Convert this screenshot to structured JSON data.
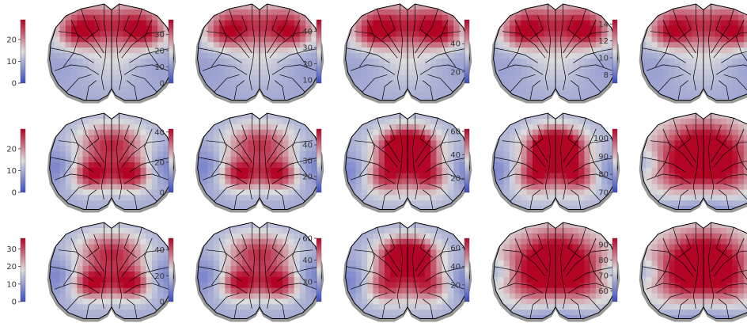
{
  "chart_data": {
    "type": "heatmap",
    "layout": {
      "rows": 3,
      "cols": 5
    },
    "colormap": {
      "name": "coolwarm",
      "low": "#3b4cc0",
      "mid": "#dddddd",
      "high": "#b40426"
    },
    "outline_color": "#000000",
    "background_region_color": "#999999",
    "panels": [
      {
        "row": 0,
        "col": 0,
        "pattern": "frontal",
        "peak": 0.95,
        "range": [
          0,
          29
        ],
        "ticks": [
          0,
          10,
          20
        ]
      },
      {
        "row": 0,
        "col": 1,
        "pattern": "frontal",
        "peak": 0.92,
        "range": [
          0,
          39
        ],
        "ticks": [
          0,
          10,
          20,
          30
        ]
      },
      {
        "row": 0,
        "col": 2,
        "pattern": "frontal",
        "peak": 0.97,
        "range": [
          8,
          47
        ],
        "ticks": [
          10,
          20,
          30,
          40
        ]
      },
      {
        "row": 0,
        "col": 3,
        "pattern": "frontal",
        "peak": 0.95,
        "range": [
          12,
          57
        ],
        "ticks": [
          20,
          40
        ]
      },
      {
        "row": 0,
        "col": 4,
        "pattern": "frontal",
        "peak": 0.93,
        "range": [
          7,
          14.5
        ],
        "ticks": [
          8,
          10,
          12,
          14
        ]
      },
      {
        "row": 1,
        "col": 0,
        "pattern": "lateral",
        "peak": 0.95,
        "range": [
          0,
          29
        ],
        "ticks": [
          0,
          10,
          20
        ]
      },
      {
        "row": 1,
        "col": 1,
        "pattern": "lateral",
        "peak": 0.92,
        "range": [
          0,
          42
        ],
        "ticks": [
          0,
          20,
          40
        ]
      },
      {
        "row": 1,
        "col": 2,
        "pattern": "lateral_front",
        "peak": 0.95,
        "range": [
          10,
          50
        ],
        "ticks": [
          20,
          30,
          40
        ]
      },
      {
        "row": 1,
        "col": 3,
        "pattern": "lateral_front",
        "peak": 0.96,
        "range": [
          8,
          62
        ],
        "ticks": [
          20,
          40,
          60
        ]
      },
      {
        "row": 1,
        "col": 4,
        "pattern": "broad",
        "peak": 0.9,
        "range": [
          70,
          105
        ],
        "ticks": [
          70,
          80,
          90,
          100
        ]
      },
      {
        "row": 2,
        "col": 0,
        "pattern": "lateral",
        "peak": 0.95,
        "range": [
          0,
          36
        ],
        "ticks": [
          0,
          10,
          20,
          30
        ]
      },
      {
        "row": 2,
        "col": 1,
        "pattern": "lateral",
        "peak": 0.93,
        "range": [
          0,
          49
        ],
        "ticks": [
          0,
          20,
          40
        ]
      },
      {
        "row": 2,
        "col": 2,
        "pattern": "lateral_front",
        "peak": 0.9,
        "range": [
          2,
          60
        ],
        "ticks": [
          20,
          40,
          60
        ]
      },
      {
        "row": 2,
        "col": 3,
        "pattern": "broad",
        "peak": 0.9,
        "range": [
          2,
          70
        ],
        "ticks": [
          20,
          40,
          60
        ]
      },
      {
        "row": 2,
        "col": 4,
        "pattern": "broad",
        "peak": 0.9,
        "range": [
          53,
          94
        ],
        "ticks": [
          60,
          70,
          80,
          90
        ]
      }
    ]
  }
}
